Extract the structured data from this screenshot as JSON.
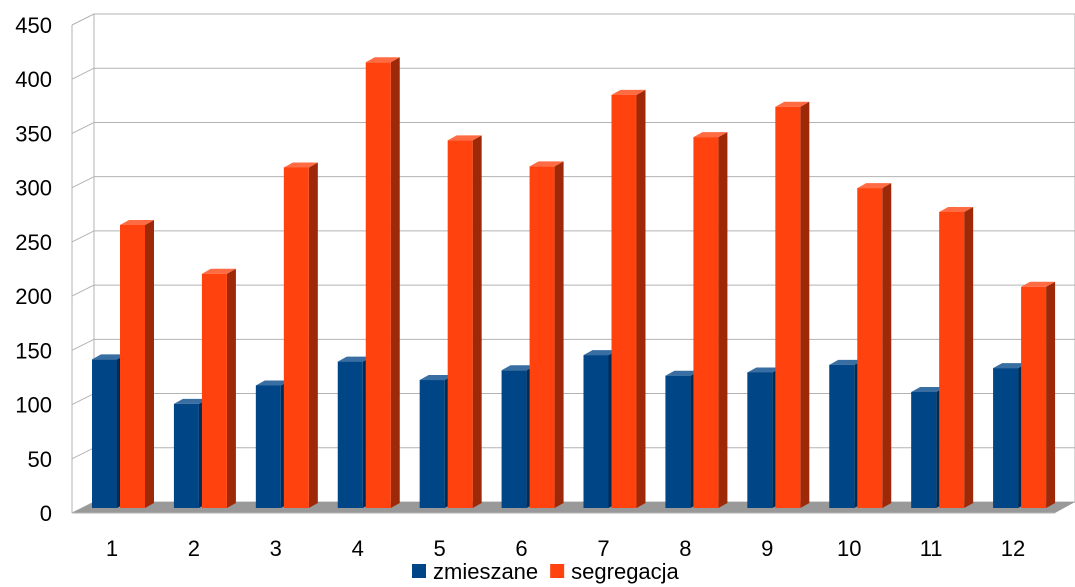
{
  "chart_data": {
    "type": "bar",
    "categories": [
      "1",
      "2",
      "3",
      "4",
      "5",
      "6",
      "7",
      "8",
      "9",
      "10",
      "11",
      "12"
    ],
    "series": [
      {
        "name": "zmieszane",
        "color": "#004586",
        "values": [
          137,
          96,
          113,
          135,
          118,
          127,
          141,
          122,
          125,
          132,
          107,
          129
        ]
      },
      {
        "name": "segregacja",
        "color": "#ff420e",
        "values": [
          261,
          216,
          314,
          411,
          339,
          315,
          381,
          342,
          370,
          295,
          273,
          204
        ]
      }
    ],
    "ylim": [
      0,
      450
    ],
    "yticks": [
      0,
      50,
      100,
      150,
      200,
      250,
      300,
      350,
      400,
      450
    ],
    "grid": true,
    "style": "3d",
    "legend_position": "bottom"
  }
}
